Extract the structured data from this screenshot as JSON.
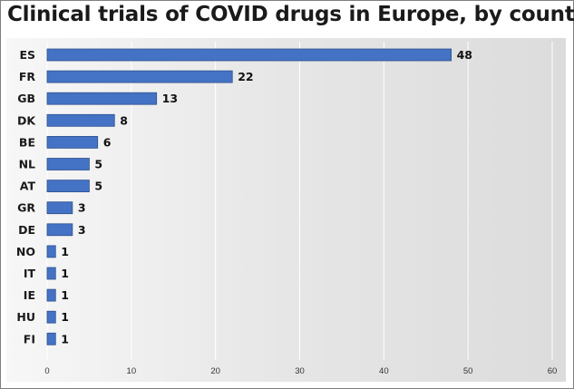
{
  "chart_data": {
    "type": "bar",
    "orientation": "horizontal",
    "title": "Clinical trials of COVID drugs in Europe, by country",
    "xlabel": "",
    "ylabel": "",
    "categories": [
      "ES",
      "FR",
      "GB",
      "DK",
      "BE",
      "NL",
      "AT",
      "GR",
      "DE",
      "NO",
      "IT",
      "IE",
      "HU",
      "FI"
    ],
    "values": [
      48,
      22,
      13,
      8,
      6,
      5,
      5,
      3,
      3,
      1,
      1,
      1,
      1,
      1
    ],
    "xlim": [
      0,
      60
    ],
    "xticks": [
      0,
      10,
      20,
      30,
      40,
      50,
      60
    ],
    "grid": "vertical",
    "legend": "none",
    "data_labels": true,
    "colors": {
      "bar": "#4472c4",
      "bar_edge": "#2f528f",
      "plot_bg": "#ececec",
      "grid": "#ffffff"
    }
  }
}
